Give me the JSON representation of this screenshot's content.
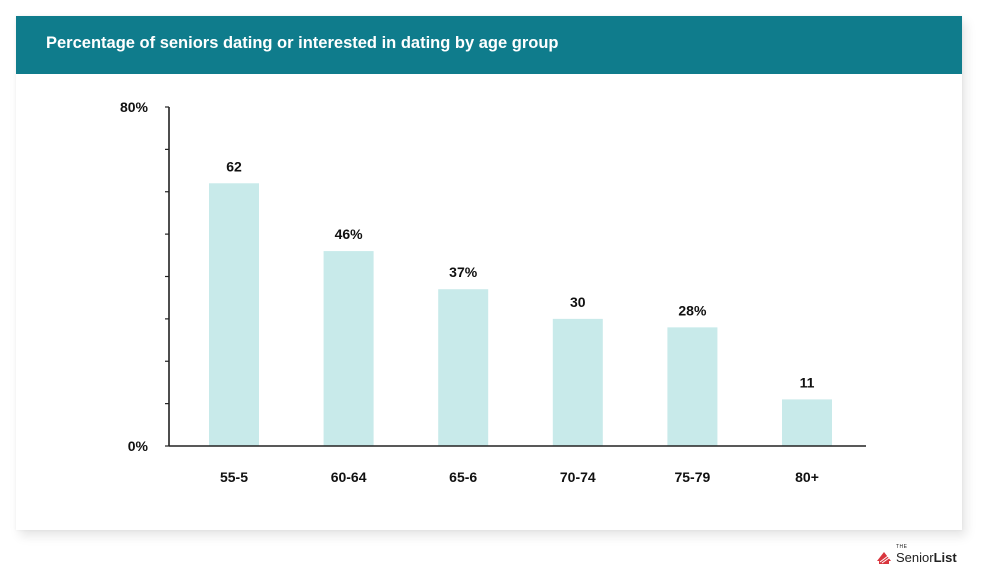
{
  "title": "Percentage of seniors dating or interested in dating by age group",
  "brand": {
    "the": "THE",
    "name_part1": "Senior",
    "name_part2": "List"
  },
  "colors": {
    "header": "#0f7c8c",
    "bar": "#c8eaea",
    "axis": "#222222"
  },
  "chart_data": {
    "type": "bar",
    "categories": [
      "55-5",
      "60-64",
      "65-6",
      "70-74",
      "75-79",
      "80+"
    ],
    "values": [
      62,
      46,
      37,
      30,
      28,
      11
    ],
    "data_labels": [
      "62",
      "46%",
      "37%",
      "30",
      "28%",
      "11"
    ],
    "ylim": [
      0,
      80
    ],
    "ytick_labels": [
      "0%",
      "80%"
    ],
    "minor_ticks": 8,
    "grid": false,
    "legend": "none"
  }
}
